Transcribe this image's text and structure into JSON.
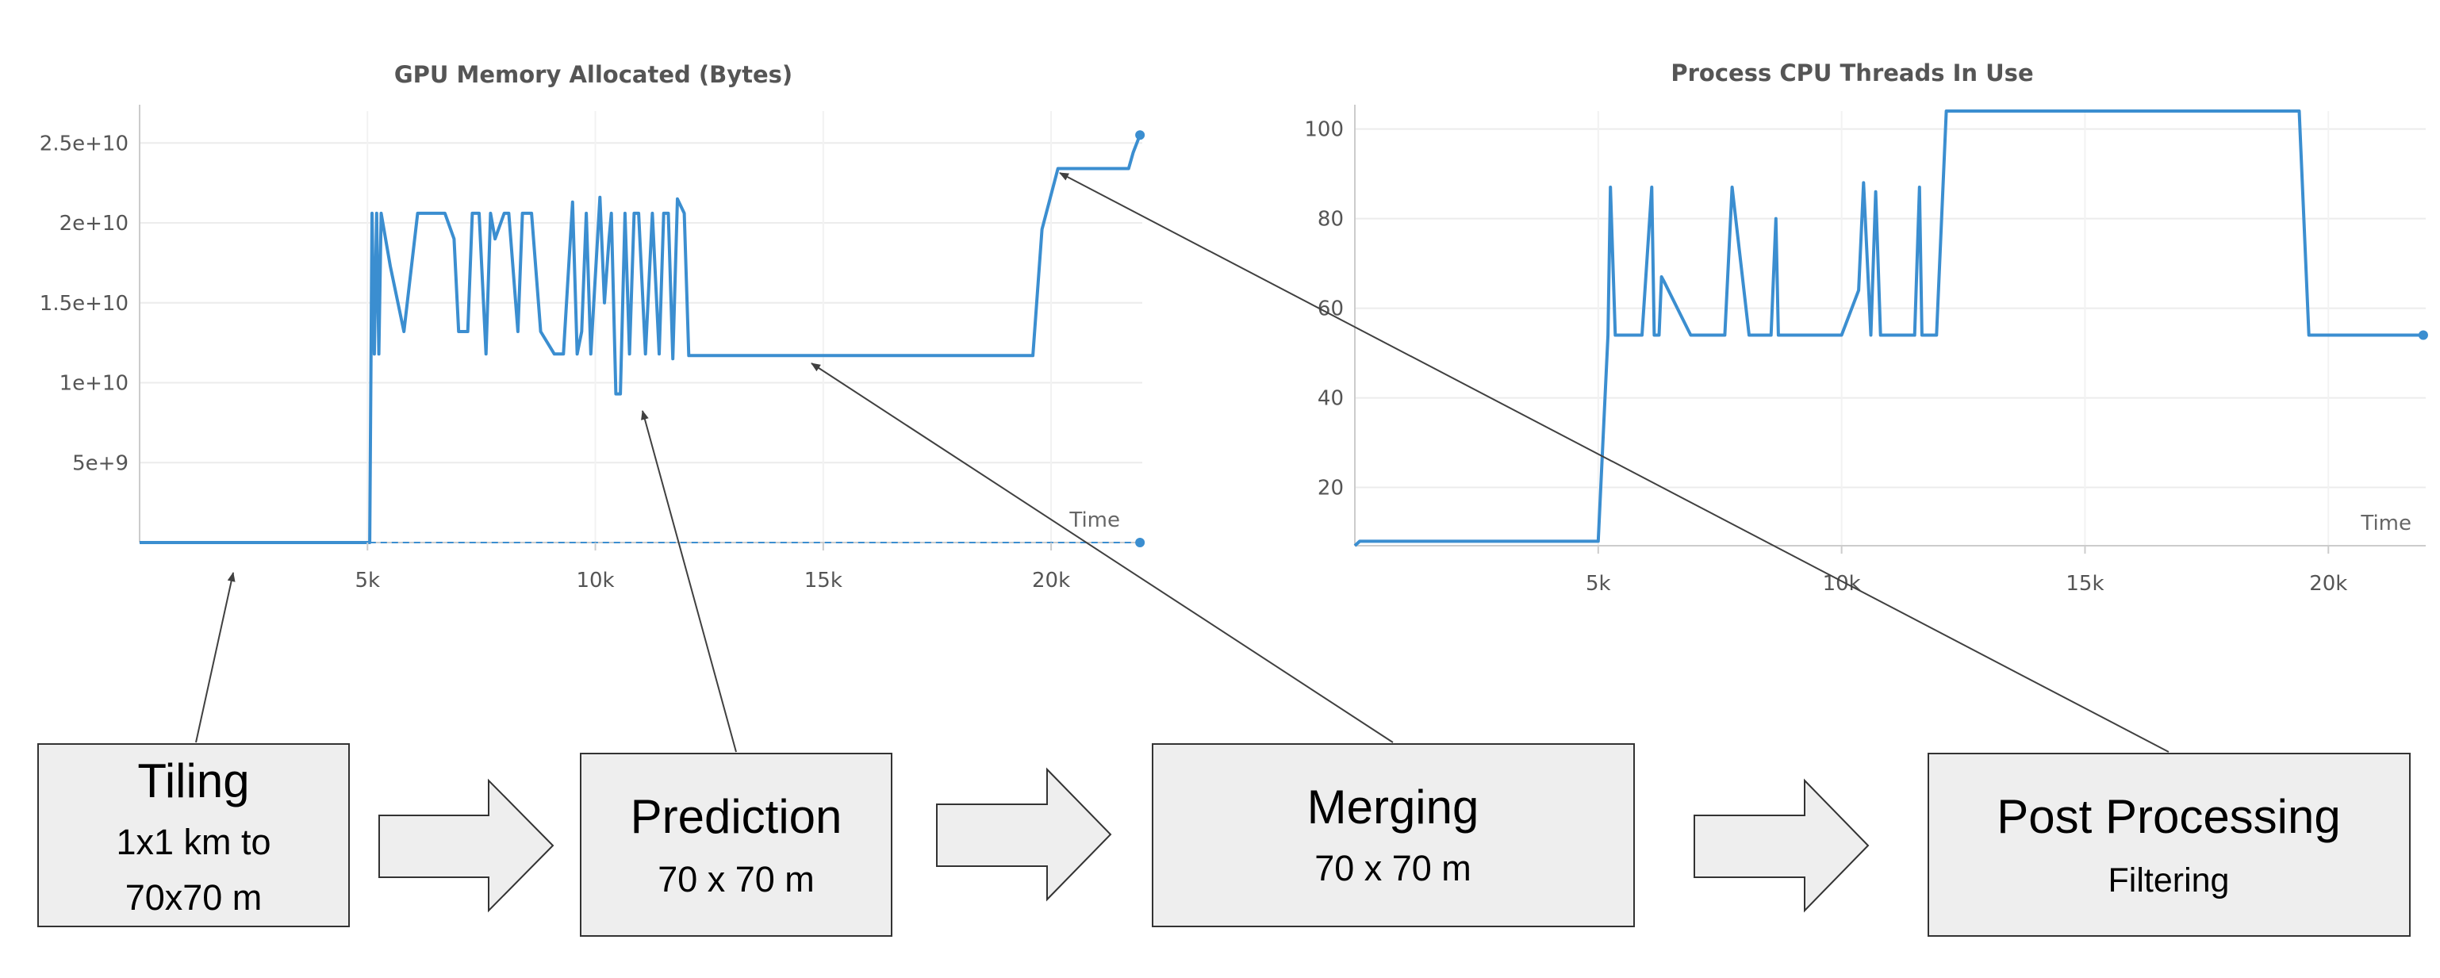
{
  "chart_data": [
    {
      "type": "line",
      "title": "GPU Memory Allocated (Bytes)",
      "xlabel": "Time",
      "ylabel": "",
      "xlim": [
        0,
        22000
      ],
      "ylim": [
        0,
        27000000000
      ],
      "xticks": [
        5000,
        10000,
        15000,
        20000
      ],
      "xtick_labels": [
        "5k",
        "10k",
        "15k",
        "20k"
      ],
      "yticks": [
        5000000000,
        10000000000,
        15000000000,
        20000000000,
        25000000000
      ],
      "ytick_labels": [
        "5e+9",
        "1e+10",
        "1.5e+10",
        "2e+10",
        "2.5e+10"
      ],
      "grid": true,
      "series": [
        {
          "color": "#3b8ed0",
          "x": [
            0,
            4800,
            5050,
            5100,
            5150,
            5200,
            5250,
            5300,
            5500,
            5800,
            6100,
            6700,
            6900,
            7000,
            7200,
            7300,
            7450,
            7600,
            7700,
            7800,
            8000,
            8100,
            8300,
            8400,
            8500,
            8600,
            8800,
            9100,
            9300,
            9500,
            9600,
            9700,
            9800,
            9900,
            10100,
            10200,
            10300,
            10350,
            10450,
            10550,
            10650,
            10750,
            10850,
            10950,
            11100,
            11250,
            11400,
            11500,
            11600,
            11700,
            11800,
            11950,
            12050,
            12150,
            19600,
            19800,
            20150,
            21000,
            21700,
            21800,
            21950
          ],
          "y": [
            0,
            0,
            0,
            20600000000,
            11800000000,
            20600000000,
            11800000000,
            20600000000,
            17300000000,
            13200000000,
            20600000000,
            20600000000,
            19000000000,
            13200000000,
            13200000000,
            20600000000,
            20600000000,
            11800000000,
            20600000000,
            19000000000,
            20600000000,
            20600000000,
            13200000000,
            20600000000,
            20600000000,
            20600000000,
            13200000000,
            11800000000,
            11800000000,
            21300000000,
            11800000000,
            13200000000,
            20600000000,
            11800000000,
            21600000000,
            15000000000,
            19000000000,
            20600000000,
            9300000000,
            9300000000,
            20600000000,
            11800000000,
            20600000000,
            20600000000,
            11800000000,
            20600000000,
            11800000000,
            20600000000,
            20600000000,
            11500000000,
            21500000000,
            20600000000,
            11700000000,
            11700000000,
            11700000000,
            19600000000,
            23400000000,
            23400000000,
            23400000000,
            24400000000,
            25500000000
          ]
        },
        {
          "color": "#3b8ed0",
          "dashed": true,
          "x": [
            4800,
            21950
          ],
          "y": [
            0,
            0
          ]
        }
      ]
    },
    {
      "type": "line",
      "title": "Process CPU Threads In Use",
      "xlabel": "Time",
      "ylabel": "",
      "xlim": [
        0,
        22000
      ],
      "ylim": [
        7,
        104
      ],
      "xticks": [
        5000,
        10000,
        15000,
        20000
      ],
      "xtick_labels": [
        "5k",
        "10k",
        "15k",
        "20k"
      ],
      "yticks": [
        20,
        40,
        60,
        80,
        100
      ],
      "ytick_labels": [
        "20",
        "40",
        "60",
        "80",
        "100"
      ],
      "grid": true,
      "series": [
        {
          "color": "#3b8ed0",
          "x": [
            0,
            100,
            5000,
            5200,
            5250,
            5350,
            5900,
            6100,
            6150,
            6250,
            6300,
            6350,
            6900,
            7600,
            7750,
            8100,
            8550,
            8650,
            8700,
            10000,
            10350,
            10450,
            10600,
            10700,
            10800,
            10900,
            10950,
            11500,
            11600,
            11650,
            11700,
            11950,
            12150,
            12200,
            19400,
            19600,
            21950
          ],
          "y": [
            7,
            8,
            8,
            54,
            87,
            54,
            54,
            87,
            54,
            54,
            67,
            66,
            54,
            54,
            87,
            54,
            54,
            80,
            54,
            54,
            64,
            88,
            54,
            86,
            54,
            54,
            54,
            54,
            87,
            54,
            54,
            54,
            104,
            104,
            104,
            54,
            54
          ]
        }
      ]
    }
  ],
  "stages": [
    {
      "title": "Tiling",
      "lines": [
        "1x1 km to",
        "70x70 m"
      ]
    },
    {
      "title": "Prediction",
      "lines": [
        "70 x 70 m"
      ]
    },
    {
      "title": "Merging",
      "lines": [
        "70 x 70 m"
      ]
    },
    {
      "title": "Post Processing",
      "lines": [
        "Filtering"
      ]
    }
  ]
}
